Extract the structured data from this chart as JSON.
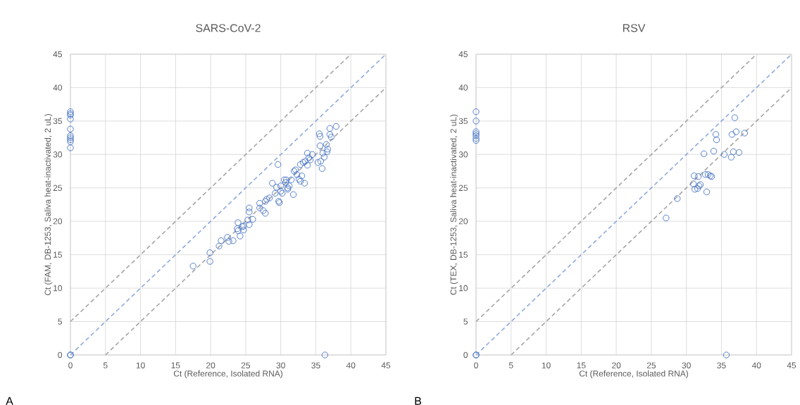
{
  "chart_data": [
    {
      "type": "scatter",
      "title": "SARS-CoV-2",
      "xlabel": "Ct (Reference, Isolated RNA)",
      "ylabel": "Ct (FAM, DB-1253, Saliva heat-inactivated, 2 uL)",
      "annotations": [
        "A"
      ],
      "xlim": [
        0,
        45
      ],
      "ylim": [
        0,
        45
      ],
      "xticks": [
        0,
        5,
        10,
        15,
        20,
        25,
        30,
        35,
        40,
        45
      ],
      "yticks": [
        0,
        5,
        10,
        15,
        20,
        25,
        30,
        35,
        40,
        45
      ],
      "grid": true,
      "series": [
        {
          "color": "#4472c4",
          "marker": "circle",
          "x": [
            0,
            0,
            0,
            0,
            0,
            0,
            0,
            0,
            0,
            0,
            0,
            0,
            17.5,
            19.9,
            19.9,
            21.2,
            21.5,
            22.4,
            22.6,
            23.2,
            23.9,
            23.8,
            23.9,
            24.2,
            24.5,
            24.7,
            24.7,
            25.3,
            25.5,
            25.5,
            25.5,
            26.0,
            27.0,
            27.0,
            27.5,
            27.8,
            27.8,
            28.0,
            28.4,
            28.8,
            29.2,
            29.6,
            29.4,
            29.7,
            29.8,
            30.0,
            30.0,
            30.2,
            30.5,
            30.7,
            30.8,
            31.0,
            31.0,
            31.2,
            31.5,
            31.8,
            31.9,
            32.1,
            32.3,
            32.6,
            32.8,
            33.0,
            32.8,
            33.2,
            33.4,
            33.5,
            33.8,
            33.8,
            34.0,
            34.2,
            34.5,
            35.5,
            35.6,
            35.6,
            35.3,
            35.7,
            35.9,
            36.0,
            36.2,
            36.5,
            36.6,
            36.7,
            37.0,
            37.0,
            37.2,
            37.9,
            36.3
          ],
          "values": [
            36.4,
            36.1,
            35.9,
            35.3,
            33.8,
            32.8,
            32.5,
            32.2,
            31.9,
            31.0,
            0,
            0,
            13.3,
            15.3,
            14.0,
            16.3,
            17.1,
            17.6,
            17.0,
            17.1,
            19.8,
            18.9,
            18.6,
            17.8,
            19.2,
            19.3,
            18.7,
            20.2,
            22.0,
            21.4,
            19.5,
            20.3,
            22.7,
            22.0,
            21.6,
            21.2,
            23.0,
            23.3,
            23.5,
            25.7,
            24.2,
            28.5,
            25.1,
            23.0,
            22.8,
            24.5,
            25.3,
            24.2,
            26.2,
            25.8,
            26.2,
            25.0,
            24.8,
            25.3,
            26.2,
            24.0,
            27.5,
            27.7,
            27.0,
            26.3,
            26.0,
            26.8,
            28.5,
            28.8,
            25.7,
            29.0,
            30.2,
            28.4,
            29.5,
            29.2,
            30.0,
            33.1,
            32.7,
            31.3,
            28.8,
            29.0,
            27.9,
            30.2,
            29.6,
            31.5,
            30.4,
            30.8,
            33.9,
            33.0,
            32.6,
            34.2,
            0
          ]
        },
        {
          "type": "line",
          "color": "#a5a5a5",
          "line_style": "dashed",
          "marker": "none",
          "x": [
            0,
            40
          ],
          "values": [
            5,
            45
          ]
        },
        {
          "type": "line",
          "color": "#8faadc",
          "line_style": "dashed",
          "marker": "none",
          "x": [
            0,
            45
          ],
          "values": [
            0,
            45
          ]
        },
        {
          "type": "line",
          "color": "#a5a5a5",
          "line_style": "dashed",
          "marker": "none",
          "x": [
            5,
            45
          ],
          "values": [
            0,
            40
          ]
        }
      ]
    },
    {
      "type": "scatter",
      "title": "RSV",
      "xlabel": "Ct (Reference, Isolated RNA)",
      "ylabel": "Ct (TEX, DB-1253, Saliva heat-inactivated, 2 uL)",
      "annotations": [
        "B"
      ],
      "xlim": [
        0,
        45
      ],
      "ylim": [
        0,
        45
      ],
      "xticks": [
        0,
        5,
        10,
        15,
        20,
        25,
        30,
        35,
        40,
        45
      ],
      "yticks": [
        0,
        5,
        10,
        15,
        20,
        25,
        30,
        35,
        40,
        45
      ],
      "grid": true,
      "series": [
        {
          "color": "#4472c4",
          "marker": "circle",
          "x": [
            0,
            0,
            0,
            0,
            0,
            0,
            0,
            0,
            0,
            27.1,
            28.7,
            31.1,
            31.7,
            31.0,
            31.2,
            31.6,
            31.8,
            32.0,
            32.5,
            32.9,
            32.7,
            33.1,
            33.4,
            33.6,
            33.9,
            34.2,
            34.3,
            35.4,
            36.4,
            36.7,
            36.5,
            37.1,
            36.9,
            37.5,
            38.3,
            35.7
          ],
          "values": [
            36.4,
            35.0,
            33.4,
            33.1,
            32.8,
            32.4,
            32.1,
            0,
            0,
            20.5,
            23.4,
            26.8,
            26.7,
            25.6,
            24.8,
            24.9,
            25.3,
            25.5,
            30.1,
            24.4,
            27.0,
            27.0,
            26.8,
            26.7,
            30.5,
            33.0,
            32.2,
            30.0,
            29.6,
            30.4,
            33.0,
            33.4,
            35.5,
            30.3,
            33.2,
            0
          ]
        },
        {
          "type": "line",
          "color": "#a5a5a5",
          "line_style": "dashed",
          "marker": "none",
          "x": [
            0,
            40
          ],
          "values": [
            5,
            45
          ]
        },
        {
          "type": "line",
          "color": "#8faadc",
          "line_style": "dashed",
          "marker": "none",
          "x": [
            0,
            45
          ],
          "values": [
            0,
            45
          ]
        },
        {
          "type": "line",
          "color": "#a5a5a5",
          "line_style": "dashed",
          "marker": "none",
          "x": [
            5,
            45
          ],
          "values": [
            0,
            40
          ]
        }
      ]
    }
  ]
}
